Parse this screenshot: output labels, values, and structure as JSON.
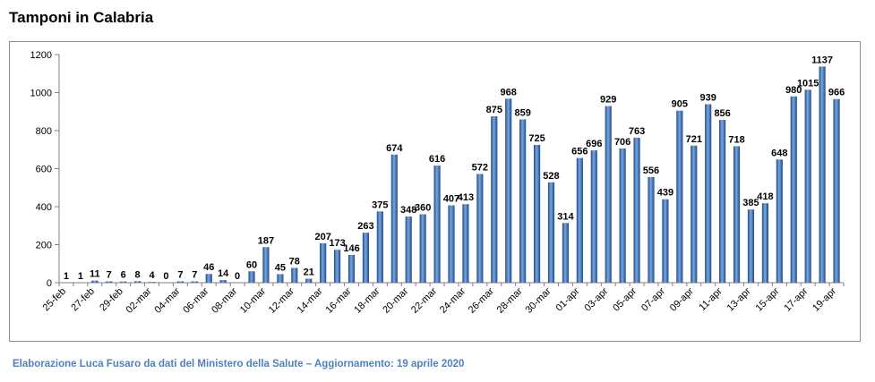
{
  "title": "Tamponi in Calabria",
  "footer": "Elaborazione  Luca Fusaro da dati del Ministero della Salute – Aggiornamento: 19 aprile 2020",
  "colors": {
    "bar": "#3a6eb8",
    "bar_dark": "#1f4a8a",
    "bar_light": "#7aa6de",
    "axis": "#808080",
    "grid": "#7f7f7f",
    "footer": "#4f81bd"
  },
  "chart_data": {
    "type": "bar",
    "title": "Tamponi in Calabria",
    "xlabel": "",
    "ylabel": "",
    "ylim": [
      0,
      1200
    ],
    "yticks": [
      0,
      200,
      400,
      600,
      800,
      1000,
      1200
    ],
    "grid": false,
    "categories": [
      "25-feb",
      "26-feb",
      "27-feb",
      "28-feb",
      "29-feb",
      "01-mar",
      "02-mar",
      "03-mar",
      "04-mar",
      "05-mar",
      "06-mar",
      "07-mar",
      "08-mar",
      "09-mar",
      "10-mar",
      "11-mar",
      "12-mar",
      "13-mar",
      "14-mar",
      "15-mar",
      "16-mar",
      "17-mar",
      "18-mar",
      "19-mar",
      "20-mar",
      "21-mar",
      "22-mar",
      "23-mar",
      "24-mar",
      "25-mar",
      "26-mar",
      "27-mar",
      "28-mar",
      "29-mar",
      "30-mar",
      "31-mar",
      "01-apr",
      "02-apr",
      "03-apr",
      "04-apr",
      "05-apr",
      "06-apr",
      "07-apr",
      "08-apr",
      "09-apr",
      "10-apr",
      "11-apr",
      "12-apr",
      "13-apr",
      "14-apr",
      "15-apr",
      "16-apr",
      "17-apr",
      "18-apr",
      "19-apr"
    ],
    "tick_labels": [
      "25-feb",
      "27-feb",
      "29-feb",
      "02-mar",
      "04-mar",
      "06-mar",
      "08-mar",
      "10-mar",
      "12-mar",
      "14-mar",
      "16-mar",
      "18-mar",
      "20-mar",
      "22-mar",
      "24-mar",
      "26-mar",
      "28-mar",
      "30-mar",
      "01-apr",
      "03-apr",
      "05-apr",
      "07-apr",
      "09-apr",
      "11-apr",
      "13-apr",
      "15-apr",
      "17-apr",
      "19-apr"
    ],
    "values": [
      1,
      1,
      11,
      7,
      6,
      8,
      4,
      0,
      7,
      7,
      46,
      14,
      0,
      60,
      187,
      45,
      78,
      21,
      207,
      173,
      146,
      263,
      375,
      674,
      348,
      360,
      616,
      407,
      413,
      572,
      875,
      968,
      859,
      725,
      528,
      314,
      656,
      696,
      929,
      706,
      763,
      556,
      439,
      905,
      721,
      939,
      856,
      718,
      385,
      418,
      648,
      980,
      1015,
      1137,
      966
    ]
  }
}
